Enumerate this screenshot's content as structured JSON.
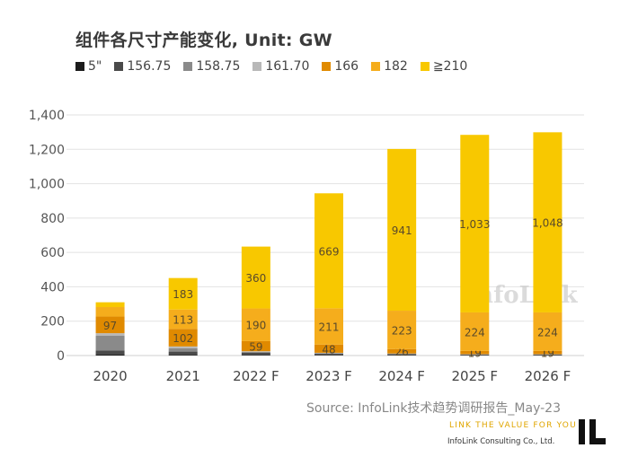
{
  "chart_data": {
    "type": "bar",
    "stacked": true,
    "title": "组件各尺寸产能变化, Unit: GW",
    "categories": [
      "2020",
      "2021",
      "2022 F",
      "2023 F",
      "2024 F",
      "2025 F",
      "2026 F"
    ],
    "ylim": [
      0,
      1400
    ],
    "yticks": [
      0,
      200,
      400,
      600,
      800,
      1000,
      1200,
      1400
    ],
    "ytick_labels": [
      "0",
      "200",
      "400",
      "600",
      "800",
      "1,000",
      "1,200",
      "1,400"
    ],
    "grid": true,
    "legend_position": "top",
    "series": [
      {
        "name": "5\"",
        "color": "#1c1c1c",
        "values": [
          5,
          3,
          2,
          1,
          1,
          1,
          1
        ]
      },
      {
        "name": "156.75",
        "color": "#4a4a4a",
        "values": [
          25,
          20,
          15,
          10,
          8,
          5,
          5
        ]
      },
      {
        "name": "158.75",
        "color": "#8a8a8a",
        "values": [
          85,
          20,
          5,
          3,
          2,
          1,
          1
        ]
      },
      {
        "name": "161.70",
        "color": "#b8b8b8",
        "values": [
          15,
          10,
          3,
          2,
          1,
          1,
          1
        ]
      },
      {
        "name": "166",
        "color": "#e08a00",
        "values": [
          97,
          102,
          59,
          48,
          26,
          19,
          19
        ]
      },
      {
        "name": "182",
        "color": "#f5ad1c",
        "values": [
          55,
          113,
          190,
          211,
          223,
          224,
          224
        ]
      },
      {
        "name": "≧210",
        "color": "#f8c800",
        "values": [
          28,
          183,
          360,
          669,
          941,
          1033,
          1048
        ]
      }
    ],
    "data_labels": [
      [
        null,
        null,
        null,
        null,
        "97",
        null,
        null
      ],
      [
        null,
        null,
        null,
        null,
        "102",
        "113",
        "183"
      ],
      [
        null,
        null,
        null,
        null,
        "59",
        "190",
        "360"
      ],
      [
        null,
        null,
        null,
        null,
        "48",
        "211",
        "669"
      ],
      [
        null,
        null,
        null,
        null,
        "26",
        "223",
        "941"
      ],
      [
        null,
        null,
        null,
        null,
        "19",
        "224",
        "1,033"
      ],
      [
        null,
        null,
        null,
        null,
        "19",
        "224",
        "1,048"
      ]
    ]
  },
  "watermark": "InfoLink",
  "source": "Source: InfoLink技术趋势调研报告_May-23",
  "tagline": "LINK THE VALUE FOR YOU",
  "company": "InfoLink Consulting Co., Ltd."
}
